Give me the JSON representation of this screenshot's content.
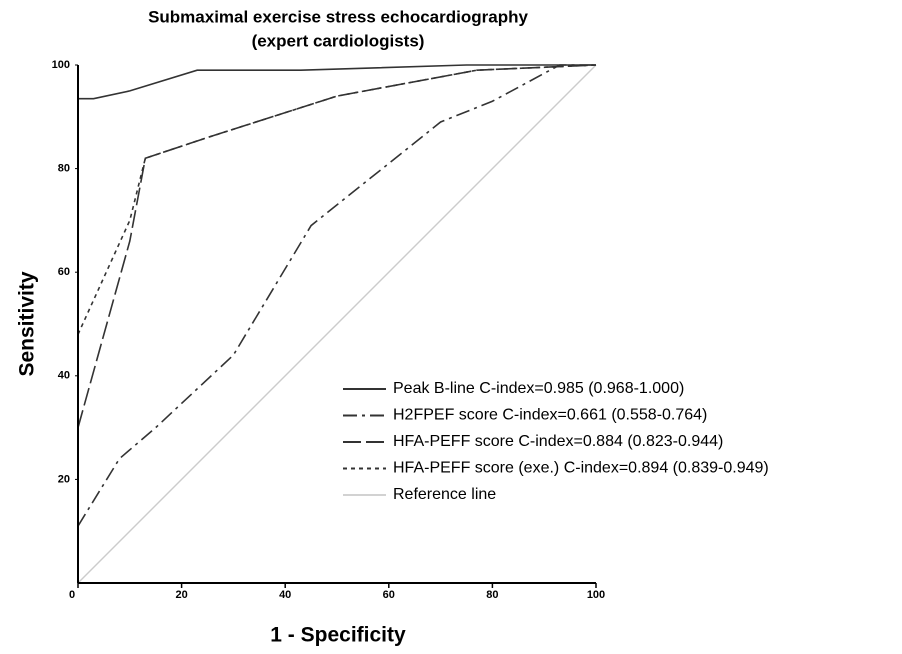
{
  "chart_data": {
    "type": "line",
    "title": "Submaximal exercise stress echocardiography",
    "subtitle": "(expert cardiologists)",
    "x_label": "1 - Specificity",
    "y_label": "Sensitivity",
    "xlim": [
      0,
      100
    ],
    "ylim": [
      0,
      100
    ],
    "xticks": [
      0,
      20,
      40,
      60,
      80,
      100
    ],
    "yticks": [
      20,
      40,
      60,
      80,
      100
    ],
    "grid": false,
    "series": [
      {
        "name": "Peak B-line C-index=0.985 (0.968-1.000)",
        "color": "#333333",
        "dash": "none",
        "width": 1.6,
        "x": [
          0,
          3,
          10,
          23,
          43,
          75,
          100
        ],
        "values": [
          93.5,
          93.5,
          95,
          99,
          99,
          100,
          100
        ]
      },
      {
        "name": "H2FPEF score C-index=0.661 (0.558-0.764)",
        "color": "#333333",
        "dash": "14 5 3 5",
        "width": 1.6,
        "x": [
          0,
          8,
          15,
          30,
          45,
          70,
          80,
          93,
          100
        ],
        "values": [
          11,
          24,
          30,
          44,
          69,
          89,
          93,
          100,
          100
        ]
      },
      {
        "name": "HFA-PEFF score C-index=0.884 (0.823-0.944)",
        "color": "#333333",
        "dash": "18 5",
        "width": 1.6,
        "x": [
          0,
          10,
          13,
          25,
          50,
          77,
          100
        ],
        "values": [
          30,
          66,
          82,
          86,
          94,
          99,
          100
        ]
      },
      {
        "name": "HFA-PEFF score (exe.) C-index=0.894 (0.839-0.949)",
        "color": "#333333",
        "dash": "4 4",
        "width": 1.6,
        "x": [
          0,
          10,
          13,
          25,
          50,
          77,
          100
        ],
        "values": [
          48,
          70,
          82,
          86,
          94,
          99,
          100
        ]
      },
      {
        "name": "Reference line",
        "color": "#cccccc",
        "dash": "none",
        "width": 1.4,
        "x": [
          0,
          100
        ],
        "values": [
          0,
          100
        ]
      }
    ]
  }
}
